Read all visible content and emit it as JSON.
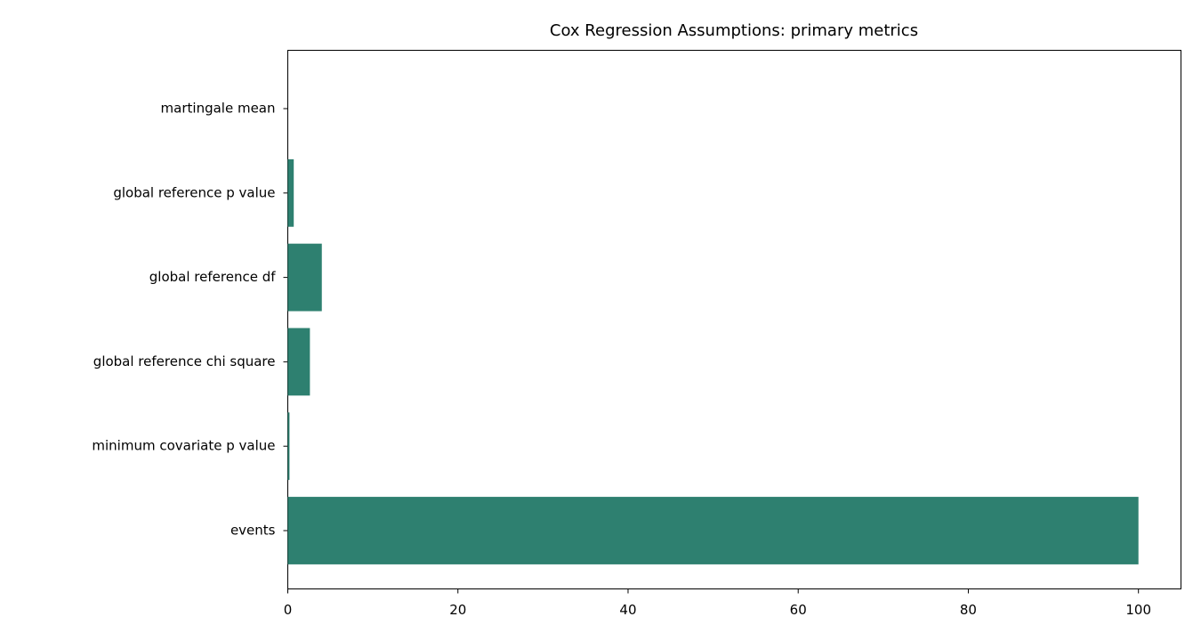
{
  "chart_data": {
    "type": "barh",
    "title": "Cox Regression Assumptions: primary metrics",
    "categories": [
      "events",
      "minimum covariate p value",
      "global reference chi square",
      "global reference df",
      "global reference p value",
      "martingale mean"
    ],
    "values": [
      100,
      0.2,
      2.6,
      4,
      0.7,
      0
    ],
    "color": "#2e8070",
    "xlim": [
      0,
      105
    ],
    "xticks": [
      0,
      20,
      40,
      60,
      80,
      100
    ]
  }
}
